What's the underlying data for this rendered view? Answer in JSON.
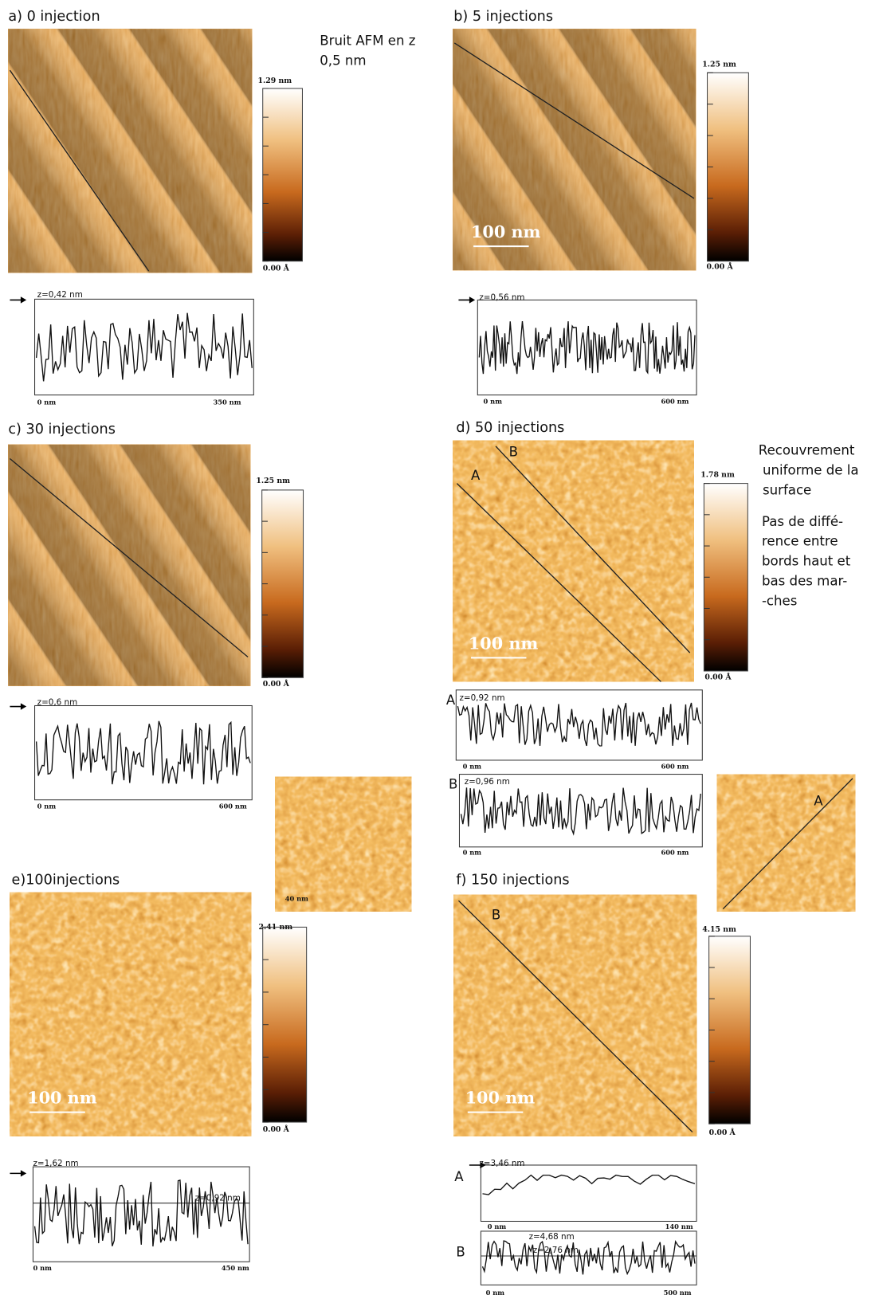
{
  "note": [
    "Bruit AFM en z",
    "0,5 nm"
  ],
  "side_note": {
    "lines_1": [
      "Recouvrement",
      "uniforme de la",
      "surface"
    ],
    "lines_2": [
      "Pas de diffé-",
      "rence entre",
      "bords haut et",
      "bas des mar-",
      "-ches"
    ]
  },
  "panels": [
    {
      "title": "a) 0 injection",
      "colorbar": {
        "max": "1.29 nm",
        "min": "0.00 Å"
      },
      "profiles": [
        {
          "z": "z=0,42 nm",
          "x_start": "0 nm",
          "x_end": "350 nm"
        }
      ]
    },
    {
      "title": "b) 5 injections",
      "colorbar": {
        "max": "1.25 nm",
        "min": "0.00 Å"
      },
      "scale_bar": "100 nm",
      "profiles": [
        {
          "z": "z=0,56 nm",
          "x_start": "0 nm",
          "x_end": "600 nm"
        }
      ]
    },
    {
      "title": "c) 30 injections",
      "colorbar": {
        "max": "1.25 nm",
        "min": "0.00 Å"
      },
      "profiles": [
        {
          "z": "z=0,6 nm",
          "x_start": "0 nm",
          "x_end": "600 nm"
        }
      ]
    },
    {
      "title": "d) 50 injections",
      "colorbar": {
        "max": "1.78 nm",
        "min": "0.00 Å"
      },
      "scale_bar": "100 nm",
      "line_labels": [
        "A",
        "B"
      ],
      "profiles": [
        {
          "label": "A",
          "z": "z=0,92 nm",
          "x_start": "0 nm",
          "x_end": "600 nm"
        },
        {
          "label": "B",
          "z": "z=0,96 nm",
          "x_start": "0 nm",
          "x_end": "600 nm"
        }
      ]
    },
    {
      "title": "e)100injections",
      "colorbar": {
        "max": "2.41 nm",
        "min": "0.00 Å"
      },
      "scale_bar": "100 nm",
      "profiles": [
        {
          "z": "z=1,62 nm",
          "z_ref": "z=0,92 nm",
          "x_start": "0 nm",
          "x_end": "450 nm"
        }
      ],
      "inset": {
        "label": "40 nm"
      }
    },
    {
      "title": "f) 150 injections",
      "colorbar": {
        "max": "4.15 nm",
        "min": "0.00 Å"
      },
      "scale_bar": "100 nm",
      "line_labels": [
        "B"
      ],
      "profiles": [
        {
          "label": "A",
          "z": "z=3,46 nm",
          "x_start": "0 nm",
          "x_end": "140 nm"
        },
        {
          "label": "B",
          "z": "z=4,68 nm",
          "z_ref": "z=2,76 nm",
          "x_start": "0 nm",
          "x_end": "500 nm"
        }
      ],
      "inset": {
        "label": "A"
      }
    }
  ]
}
